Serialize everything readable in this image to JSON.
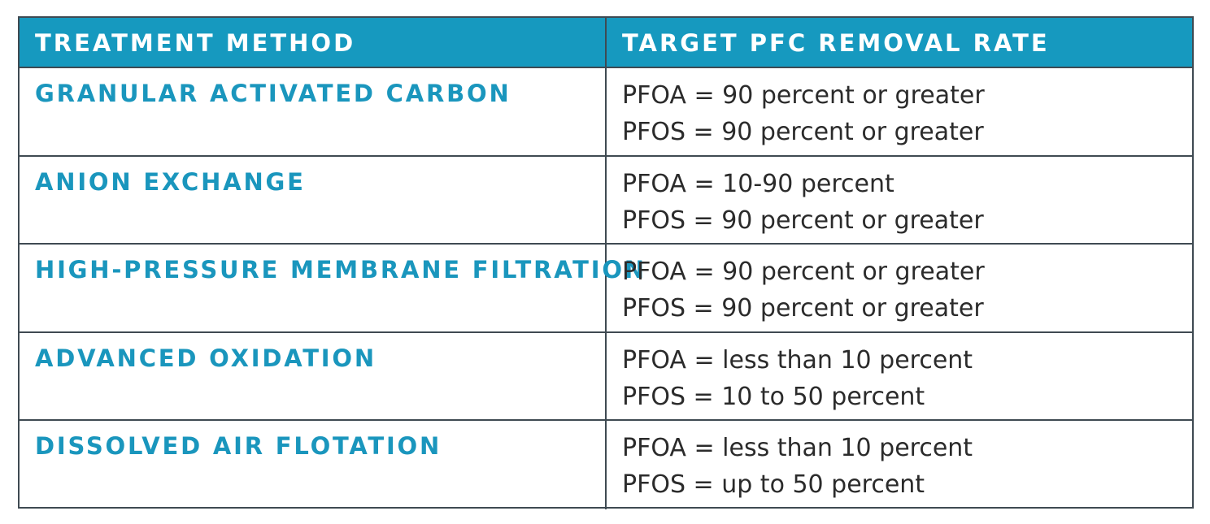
{
  "table": {
    "headers": {
      "method": "TREATMENT METHOD",
      "rate": "TARGET PFC REMOVAL RATE"
    },
    "rows": [
      {
        "method": "GRANULAR ACTIVATED CARBON",
        "pfoa": "PFOA = 90 percent or greater",
        "pfos": "PFOS = 90 percent or greater"
      },
      {
        "method": "ANION EXCHANGE",
        "pfoa": "PFOA = 10-90 percent",
        "pfos": "PFOS = 90 percent or greater"
      },
      {
        "method": "HIGH-PRESSURE MEMBRANE FILTRATION",
        "pfoa": "PFOA = 90 percent or greater",
        "pfos": "PFOS = 90 percent or greater"
      },
      {
        "method": "ADVANCED OXIDATION",
        "pfoa": "PFOA = less than 10 percent",
        "pfos": "PFOS = 10 to 50 percent"
      },
      {
        "method": "DISSOLVED AIR FLOTATION",
        "pfoa": "PFOA = less than 10 percent",
        "pfos": "PFOS = up to 50 percent"
      }
    ],
    "colors": {
      "header_bg": "#1699bf",
      "method_text": "#1a96bd",
      "border": "#3f4a52"
    }
  }
}
